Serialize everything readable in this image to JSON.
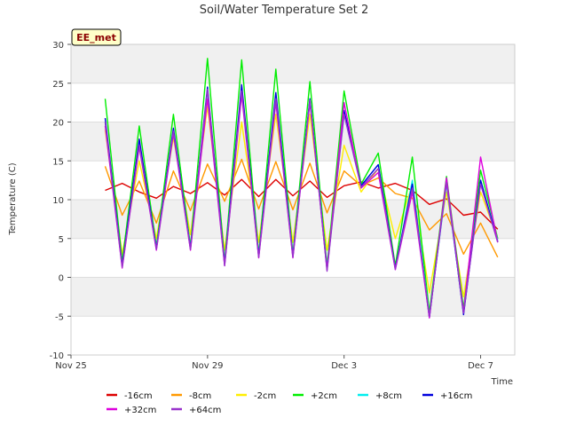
{
  "chart_data": {
    "type": "line",
    "title": "Soil/Water Temperature Set 2",
    "xlabel": "Time",
    "ylabel": "Temperature (C)",
    "badge": "EE_met",
    "ylim": [
      -10,
      30
    ],
    "yticks": [
      -10,
      -5,
      0,
      5,
      10,
      15,
      20,
      25,
      30
    ],
    "xlim": [
      "2024-11-25",
      "2024-12-08"
    ],
    "xticks": [
      {
        "date": "2024-11-25",
        "label": "Nov 25"
      },
      {
        "date": "2024-11-29",
        "label": "Nov 29"
      },
      {
        "date": "2024-12-03",
        "label": "Dec 3"
      },
      {
        "date": "2024-12-07",
        "label": "Dec 7"
      }
    ],
    "grid": true,
    "legend_position": "bottom",
    "series": [
      {
        "name": "-16cm",
        "color": "#dd0000",
        "x": [
          "2024-11-26T00:00",
          "2024-11-26T12:00",
          "2024-11-27T00:00",
          "2024-11-27T12:00",
          "2024-11-28T00:00",
          "2024-11-28T12:00",
          "2024-11-29T00:00",
          "2024-11-29T12:00",
          "2024-11-30T00:00",
          "2024-11-30T12:00",
          "2024-12-01T00:00",
          "2024-12-01T12:00",
          "2024-12-02T00:00",
          "2024-12-02T12:00",
          "2024-12-03T00:00",
          "2024-12-03T12:00",
          "2024-12-04T00:00",
          "2024-12-04T12:00",
          "2024-12-05T00:00",
          "2024-12-05T12:00",
          "2024-12-06T00:00",
          "2024-12-06T12:00",
          "2024-12-07T00:00",
          "2024-12-07T12:00"
        ],
        "y": [
          11.2,
          12.1,
          11.0,
          10.2,
          11.7,
          10.8,
          12.2,
          10.6,
          12.6,
          10.4,
          12.6,
          10.5,
          12.4,
          10.3,
          11.8,
          12.3,
          11.5,
          12.1,
          11.2,
          9.4,
          10.1,
          8.0,
          8.4,
          6.2
        ]
      },
      {
        "name": "-8cm",
        "color": "#ff9900",
        "x": [
          "2024-11-26T00:00",
          "2024-11-26T12:00",
          "2024-11-27T00:00",
          "2024-11-27T12:00",
          "2024-11-28T00:00",
          "2024-11-28T12:00",
          "2024-11-29T00:00",
          "2024-11-29T12:00",
          "2024-11-30T00:00",
          "2024-11-30T12:00",
          "2024-12-01T00:00",
          "2024-12-01T12:00",
          "2024-12-02T00:00",
          "2024-12-02T12:00",
          "2024-12-03T00:00",
          "2024-12-03T12:00",
          "2024-12-04T00:00",
          "2024-12-04T12:00",
          "2024-12-05T00:00",
          "2024-12-05T12:00",
          "2024-12-06T00:00",
          "2024-12-06T12:00",
          "2024-12-07T00:00",
          "2024-12-07T12:00"
        ],
        "y": [
          14.3,
          8.0,
          12.4,
          7.0,
          13.7,
          8.6,
          14.6,
          9.8,
          15.2,
          8.8,
          14.9,
          8.7,
          14.7,
          8.3,
          13.7,
          11.8,
          12.8,
          10.8,
          10.2,
          6.1,
          8.2,
          3.0,
          7.0,
          2.6
        ]
      },
      {
        "name": "-2cm",
        "color": "#ffee00",
        "x": [
          "2024-11-26T00:00",
          "2024-11-26T12:00",
          "2024-11-27T00:00",
          "2024-11-27T12:00",
          "2024-11-28T00:00",
          "2024-11-28T12:00",
          "2024-11-29T00:00",
          "2024-11-29T12:00",
          "2024-11-30T00:00",
          "2024-11-30T12:00",
          "2024-12-01T00:00",
          "2024-12-01T12:00",
          "2024-12-02T00:00",
          "2024-12-02T12:00",
          "2024-12-03T00:00",
          "2024-12-03T12:00",
          "2024-12-04T00:00",
          "2024-12-04T12:00",
          "2024-12-05T00:00",
          "2024-12-05T12:00",
          "2024-12-06T00:00",
          "2024-12-06T12:00",
          "2024-12-07T00:00",
          "2024-12-07T12:00"
        ],
        "y": [
          19.0,
          3.0,
          15.0,
          5.0,
          18.0,
          5.5,
          22.0,
          3.5,
          20.0,
          4.5,
          21.0,
          4.5,
          21.0,
          3.5,
          17.0,
          11.0,
          14.0,
          5.0,
          12.0,
          -2.0,
          11.0,
          -2.5,
          11.0,
          5.0
        ]
      },
      {
        "name": "+2cm",
        "color": "#00ee00",
        "x": [
          "2024-11-26T00:00",
          "2024-11-26T12:00",
          "2024-11-27T00:00",
          "2024-11-27T12:00",
          "2024-11-28T00:00",
          "2024-11-28T12:00",
          "2024-11-29T00:00",
          "2024-11-29T12:00",
          "2024-11-30T00:00",
          "2024-11-30T12:00",
          "2024-12-01T00:00",
          "2024-12-01T12:00",
          "2024-12-02T00:00",
          "2024-12-02T12:00",
          "2024-12-03T00:00",
          "2024-12-03T12:00",
          "2024-12-04T00:00",
          "2024-12-04T12:00",
          "2024-12-05T00:00",
          "2024-12-05T12:00",
          "2024-12-06T00:00",
          "2024-12-06T12:00",
          "2024-12-07T00:00",
          "2024-12-07T12:00"
        ],
        "y": [
          23.0,
          2.0,
          19.5,
          4.0,
          21.0,
          4.0,
          28.2,
          2.0,
          28.0,
          3.0,
          26.8,
          3.0,
          25.2,
          1.5,
          24.0,
          12.0,
          16.0,
          1.5,
          15.5,
          -4.5,
          13.0,
          -4.0,
          13.8,
          5.0
        ]
      },
      {
        "name": "+8cm",
        "color": "#00eeee",
        "x": [
          "2024-11-26T00:00",
          "2024-11-26T12:00",
          "2024-11-27T00:00",
          "2024-11-27T12:00",
          "2024-11-28T00:00",
          "2024-11-28T12:00",
          "2024-11-29T00:00",
          "2024-11-29T12:00",
          "2024-11-30T00:00",
          "2024-11-30T12:00",
          "2024-12-01T00:00",
          "2024-12-01T12:00",
          "2024-12-02T00:00",
          "2024-12-02T12:00",
          "2024-12-03T00:00",
          "2024-12-03T12:00",
          "2024-12-04T00:00",
          "2024-12-04T12:00",
          "2024-12-05T00:00",
          "2024-12-05T12:00",
          "2024-12-06T00:00",
          "2024-12-06T12:00",
          "2024-12-07T00:00",
          "2024-12-07T12:00"
        ],
        "y": [
          20.0,
          1.5,
          17.5,
          3.8,
          19.0,
          3.8,
          24.0,
          1.8,
          24.5,
          2.8,
          23.5,
          2.8,
          23.0,
          1.2,
          21.0,
          11.8,
          14.5,
          1.0,
          12.5,
          -5.0,
          12.0,
          -4.6,
          12.5,
          4.8
        ]
      },
      {
        "name": "+16cm",
        "color": "#0000dd",
        "x": [
          "2024-11-26T00:00",
          "2024-11-26T12:00",
          "2024-11-27T00:00",
          "2024-11-27T12:00",
          "2024-11-28T00:00",
          "2024-11-28T12:00",
          "2024-11-29T00:00",
          "2024-11-29T12:00",
          "2024-11-30T00:00",
          "2024-11-30T12:00",
          "2024-12-01T00:00",
          "2024-12-01T12:00",
          "2024-12-02T00:00",
          "2024-12-02T12:00",
          "2024-12-03T00:00",
          "2024-12-03T12:00",
          "2024-12-04T00:00",
          "2024-12-04T12:00",
          "2024-12-05T00:00",
          "2024-12-05T12:00",
          "2024-12-06T00:00",
          "2024-12-06T12:00",
          "2024-12-07T00:00",
          "2024-12-07T12:00"
        ],
        "y": [
          20.5,
          1.5,
          17.8,
          3.7,
          19.2,
          3.7,
          24.5,
          1.7,
          24.8,
          2.7,
          23.8,
          2.7,
          23.0,
          1.0,
          21.5,
          11.8,
          14.5,
          1.2,
          12.0,
          -5.2,
          12.5,
          -4.8,
          12.5,
          4.6
        ]
      },
      {
        "name": "+32cm",
        "color": "#dd00dd",
        "x": [
          "2024-11-26T00:00",
          "2024-11-26T12:00",
          "2024-11-27T00:00",
          "2024-11-27T12:00",
          "2024-11-28T00:00",
          "2024-11-28T12:00",
          "2024-11-29T00:00",
          "2024-11-29T12:00",
          "2024-11-30T00:00",
          "2024-11-30T12:00",
          "2024-12-01T00:00",
          "2024-12-01T12:00",
          "2024-12-02T00:00",
          "2024-12-02T12:00",
          "2024-12-03T00:00",
          "2024-12-03T12:00",
          "2024-12-04T00:00",
          "2024-12-04T12:00",
          "2024-12-05T00:00",
          "2024-12-05T12:00",
          "2024-12-06T00:00",
          "2024-12-06T12:00",
          "2024-12-07T00:00",
          "2024-12-07T12:00"
        ],
        "y": [
          19.5,
          1.2,
          16.8,
          3.5,
          18.5,
          3.5,
          23.0,
          1.5,
          23.5,
          2.5,
          22.5,
          2.5,
          22.5,
          1.0,
          22.5,
          11.5,
          13.5,
          1.0,
          11.0,
          -5.2,
          12.8,
          -4.5,
          15.5,
          4.5
        ]
      },
      {
        "name": "+64cm",
        "color": "#9933cc",
        "x": [
          "2024-11-26T00:00",
          "2024-11-26T12:00",
          "2024-11-27T00:00",
          "2024-11-27T12:00",
          "2024-11-28T00:00",
          "2024-11-28T12:00",
          "2024-11-29T00:00",
          "2024-11-29T12:00",
          "2024-11-30T00:00",
          "2024-11-30T12:00",
          "2024-12-01T00:00",
          "2024-12-01T12:00",
          "2024-12-02T00:00",
          "2024-12-02T12:00",
          "2024-12-03T00:00",
          "2024-12-03T12:00",
          "2024-12-04T00:00",
          "2024-12-04T12:00",
          "2024-12-05T00:00",
          "2024-12-05T12:00",
          "2024-12-06T00:00",
          "2024-12-06T12:00",
          "2024-12-07T00:00",
          "2024-12-07T12:00"
        ],
        "y": [
          20.0,
          1.3,
          17.0,
          3.6,
          18.8,
          3.6,
          24.2,
          1.5,
          24.0,
          2.6,
          23.0,
          2.6,
          22.8,
          0.8,
          21.0,
          11.6,
          14.0,
          1.1,
          11.5,
          -5.0,
          12.2,
          -4.6,
          12.0,
          4.5
        ]
      }
    ]
  }
}
